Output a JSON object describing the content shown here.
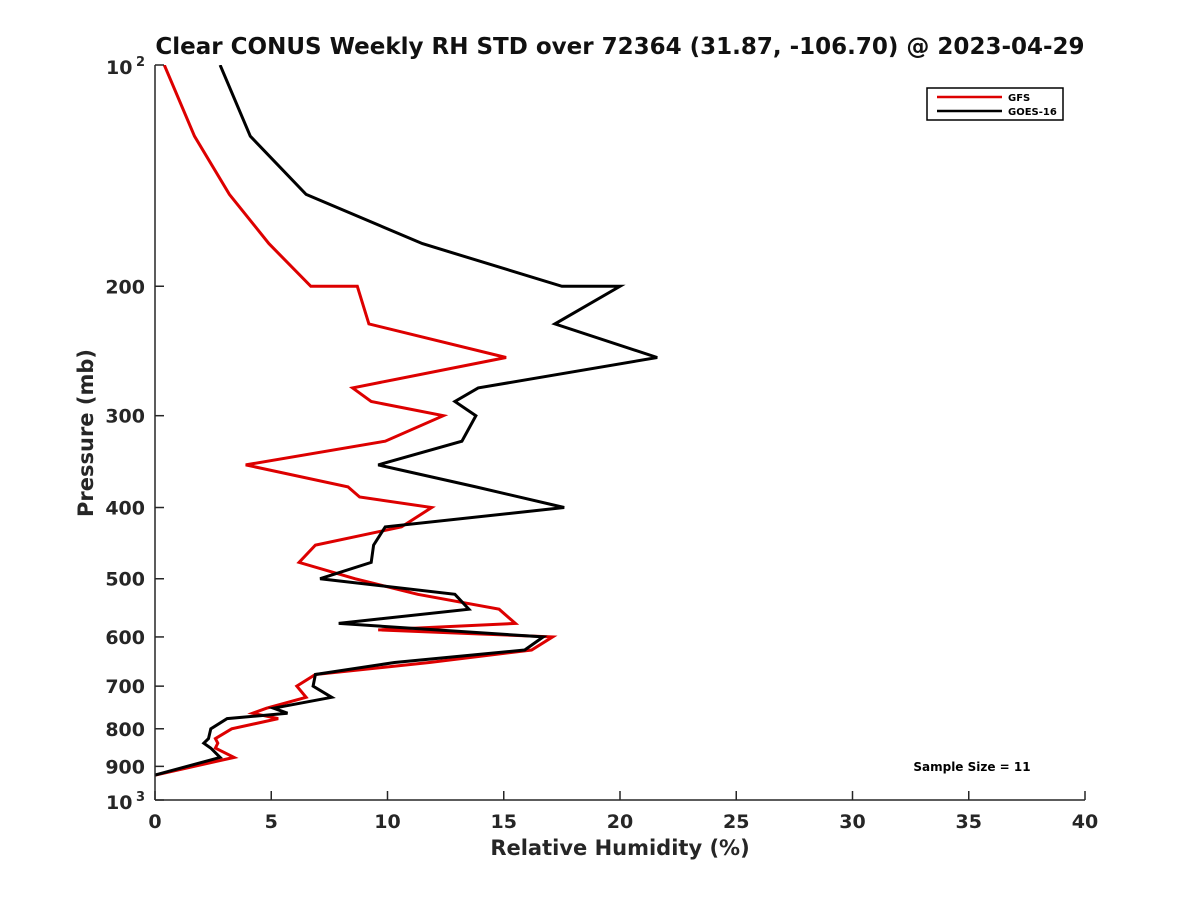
{
  "chart_data": {
    "type": "line",
    "title": "Clear CONUS Weekly RH STD over 72364 (31.87, -106.70) @ 2023-04-29",
    "xlabel": "Relative Humidity (%)",
    "ylabel": "Pressure (mb)",
    "xlim": [
      0,
      40
    ],
    "ylim": [
      100,
      1000
    ],
    "y_scale": "log",
    "y_reversed": true,
    "x_ticks": [
      "0",
      "5",
      "10",
      "15",
      "20",
      "25",
      "30",
      "35",
      "40"
    ],
    "y_ticks": [
      {
        "value": 100,
        "base": "10",
        "sup": "2"
      },
      {
        "value": 200,
        "label": "200"
      },
      {
        "value": 300,
        "label": "300"
      },
      {
        "value": 400,
        "label": "400"
      },
      {
        "value": 500,
        "label": "500"
      },
      {
        "value": 600,
        "label": "600"
      },
      {
        "value": 700,
        "label": "700"
      },
      {
        "value": 800,
        "label": "800"
      },
      {
        "value": 900,
        "label": "900"
      },
      {
        "value": 1000,
        "base": "10",
        "sup": "3"
      }
    ],
    "grid": false,
    "legend_position": "top-right",
    "annotation": "Sample Size = 11",
    "series": [
      {
        "name": "GFS",
        "color": "#dd0000",
        "points": [
          [
            0.4,
            100
          ],
          [
            1.7,
            125
          ],
          [
            3.2,
            150
          ],
          [
            4.9,
            175
          ],
          [
            6.7,
            200
          ],
          [
            8.7,
            200
          ],
          [
            9.2,
            225
          ],
          [
            15.1,
            250
          ],
          [
            8.5,
            275
          ],
          [
            9.3,
            287
          ],
          [
            12.4,
            300
          ],
          [
            9.9,
            325
          ],
          [
            3.9,
            350
          ],
          [
            8.3,
            375
          ],
          [
            8.8,
            387
          ],
          [
            11.9,
            400
          ],
          [
            10.6,
            425
          ],
          [
            6.9,
            450
          ],
          [
            6.2,
            475
          ],
          [
            8.6,
            500
          ],
          [
            11.3,
            525
          ],
          [
            14.8,
            550
          ],
          [
            15.5,
            575
          ],
          [
            9.6,
            587
          ],
          [
            17.1,
            600
          ],
          [
            16.2,
            625
          ],
          [
            11.8,
            650
          ],
          [
            6.9,
            675
          ],
          [
            6.1,
            700
          ],
          [
            6.5,
            725
          ],
          [
            4.8,
            750
          ],
          [
            4.2,
            762
          ],
          [
            5.3,
            775
          ],
          [
            3.3,
            800
          ],
          [
            2.6,
            825
          ],
          [
            2.7,
            837
          ],
          [
            2.6,
            850
          ],
          [
            3.4,
            875
          ],
          [
            0,
            925
          ]
        ]
      },
      {
        "name": "GOES-16",
        "color": "#000000",
        "points": [
          [
            2.8,
            100
          ],
          [
            4.1,
            125
          ],
          [
            6.5,
            150
          ],
          [
            11.5,
            175
          ],
          [
            17.5,
            200
          ],
          [
            20.0,
            200
          ],
          [
            17.2,
            225
          ],
          [
            21.6,
            250
          ],
          [
            13.9,
            275
          ],
          [
            12.9,
            287
          ],
          [
            13.8,
            300
          ],
          [
            13.2,
            325
          ],
          [
            9.6,
            350
          ],
          [
            13.8,
            375
          ],
          [
            17.6,
            400
          ],
          [
            9.9,
            425
          ],
          [
            9.4,
            450
          ],
          [
            9.3,
            475
          ],
          [
            7.1,
            500
          ],
          [
            12.9,
            525
          ],
          [
            13.5,
            550
          ],
          [
            7.9,
            575
          ],
          [
            16.7,
            600
          ],
          [
            15.9,
            625
          ],
          [
            10.3,
            650
          ],
          [
            6.9,
            675
          ],
          [
            6.8,
            700
          ],
          [
            7.6,
            725
          ],
          [
            5.1,
            750
          ],
          [
            5.7,
            762
          ],
          [
            3.1,
            775
          ],
          [
            2.4,
            800
          ],
          [
            2.3,
            825
          ],
          [
            2.1,
            837
          ],
          [
            2.4,
            850
          ],
          [
            2.8,
            875
          ],
          [
            0,
            925
          ]
        ]
      }
    ]
  }
}
